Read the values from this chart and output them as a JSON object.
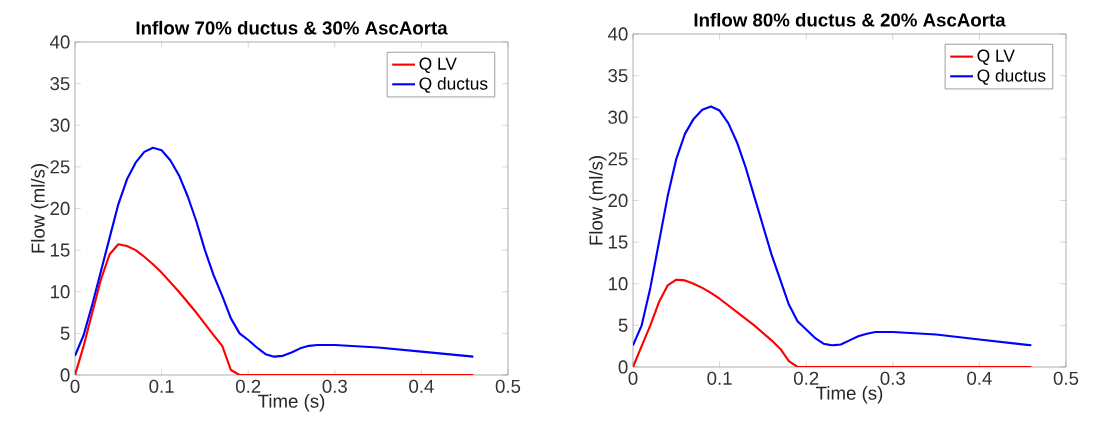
{
  "chart_data": [
    {
      "type": "line",
      "title": "Inflow 70% ductus & 30% AscAorta",
      "xlabel": "Time (s)",
      "ylabel": "Flow (ml/s)",
      "xlim": [
        0,
        0.5
      ],
      "ylim": [
        0,
        40
      ],
      "xticks": [
        0,
        0.1,
        0.2,
        0.3,
        0.4,
        0.5
      ],
      "yticks": [
        0,
        5,
        10,
        15,
        20,
        25,
        30,
        35,
        40
      ],
      "legend": "top right",
      "grid": false,
      "series": [
        {
          "name": "Q LV",
          "color": "#ff0000",
          "x": [
            0,
            0.01,
            0.02,
            0.03,
            0.04,
            0.05,
            0.06,
            0.07,
            0.08,
            0.09,
            0.1,
            0.12,
            0.14,
            0.16,
            0.17,
            0.18,
            0.19,
            0.46
          ],
          "values": [
            0,
            3.5,
            7.5,
            11.5,
            14.5,
            15.7,
            15.5,
            15,
            14.2,
            13.3,
            12.3,
            10,
            7.5,
            4.8,
            3.5,
            0.6,
            0,
            0
          ]
        },
        {
          "name": "Q ductus",
          "color": "#0000ff",
          "x": [
            0,
            0.01,
            0.02,
            0.03,
            0.04,
            0.05,
            0.06,
            0.07,
            0.08,
            0.09,
            0.1,
            0.11,
            0.12,
            0.13,
            0.14,
            0.15,
            0.16,
            0.17,
            0.18,
            0.19,
            0.2,
            0.21,
            0.22,
            0.23,
            0.24,
            0.25,
            0.26,
            0.27,
            0.28,
            0.3,
            0.35,
            0.4,
            0.46
          ],
          "values": [
            2.3,
            4.8,
            8.5,
            12.5,
            16.5,
            20.5,
            23.5,
            25.5,
            26.8,
            27.3,
            27,
            25.8,
            24,
            21.5,
            18.5,
            15,
            12,
            9.5,
            6.8,
            5,
            4.2,
            3.3,
            2.5,
            2.2,
            2.3,
            2.7,
            3.2,
            3.5,
            3.6,
            3.6,
            3.3,
            2.8,
            2.2
          ]
        }
      ]
    },
    {
      "type": "line",
      "title": "Inflow 80% ductus & 20% AscAorta",
      "xlabel": "Time (s)",
      "ylabel": "Flow (ml/s)",
      "xlim": [
        0,
        0.5
      ],
      "ylim": [
        0,
        40
      ],
      "xticks": [
        0,
        0.1,
        0.2,
        0.3,
        0.4,
        0.5
      ],
      "yticks": [
        0,
        5,
        10,
        15,
        20,
        25,
        30,
        35,
        40
      ],
      "legend": "top right",
      "grid": false,
      "series": [
        {
          "name": "Q LV",
          "color": "#ff0000",
          "x": [
            0,
            0.01,
            0.02,
            0.03,
            0.04,
            0.05,
            0.06,
            0.07,
            0.08,
            0.09,
            0.1,
            0.12,
            0.14,
            0.16,
            0.17,
            0.18,
            0.19,
            0.46
          ],
          "values": [
            0,
            2.5,
            5,
            7.8,
            9.8,
            10.5,
            10.4,
            10,
            9.5,
            8.9,
            8.2,
            6.6,
            5,
            3.2,
            2.2,
            0.7,
            0,
            0
          ]
        },
        {
          "name": "Q ductus",
          "color": "#0000ff",
          "x": [
            0,
            0.01,
            0.02,
            0.03,
            0.04,
            0.05,
            0.06,
            0.07,
            0.08,
            0.09,
            0.1,
            0.11,
            0.12,
            0.13,
            0.14,
            0.15,
            0.16,
            0.17,
            0.18,
            0.19,
            0.2,
            0.21,
            0.22,
            0.23,
            0.24,
            0.25,
            0.26,
            0.27,
            0.28,
            0.3,
            0.35,
            0.4,
            0.46
          ],
          "values": [
            2.6,
            5,
            9.5,
            15,
            20.5,
            25,
            28,
            29.8,
            30.9,
            31.3,
            30.8,
            29.3,
            27,
            24,
            20.5,
            17,
            13.5,
            10.5,
            7.5,
            5.5,
            4.5,
            3.5,
            2.8,
            2.6,
            2.7,
            3.2,
            3.7,
            4,
            4.2,
            4.2,
            3.9,
            3.3,
            2.6
          ]
        }
      ]
    }
  ]
}
